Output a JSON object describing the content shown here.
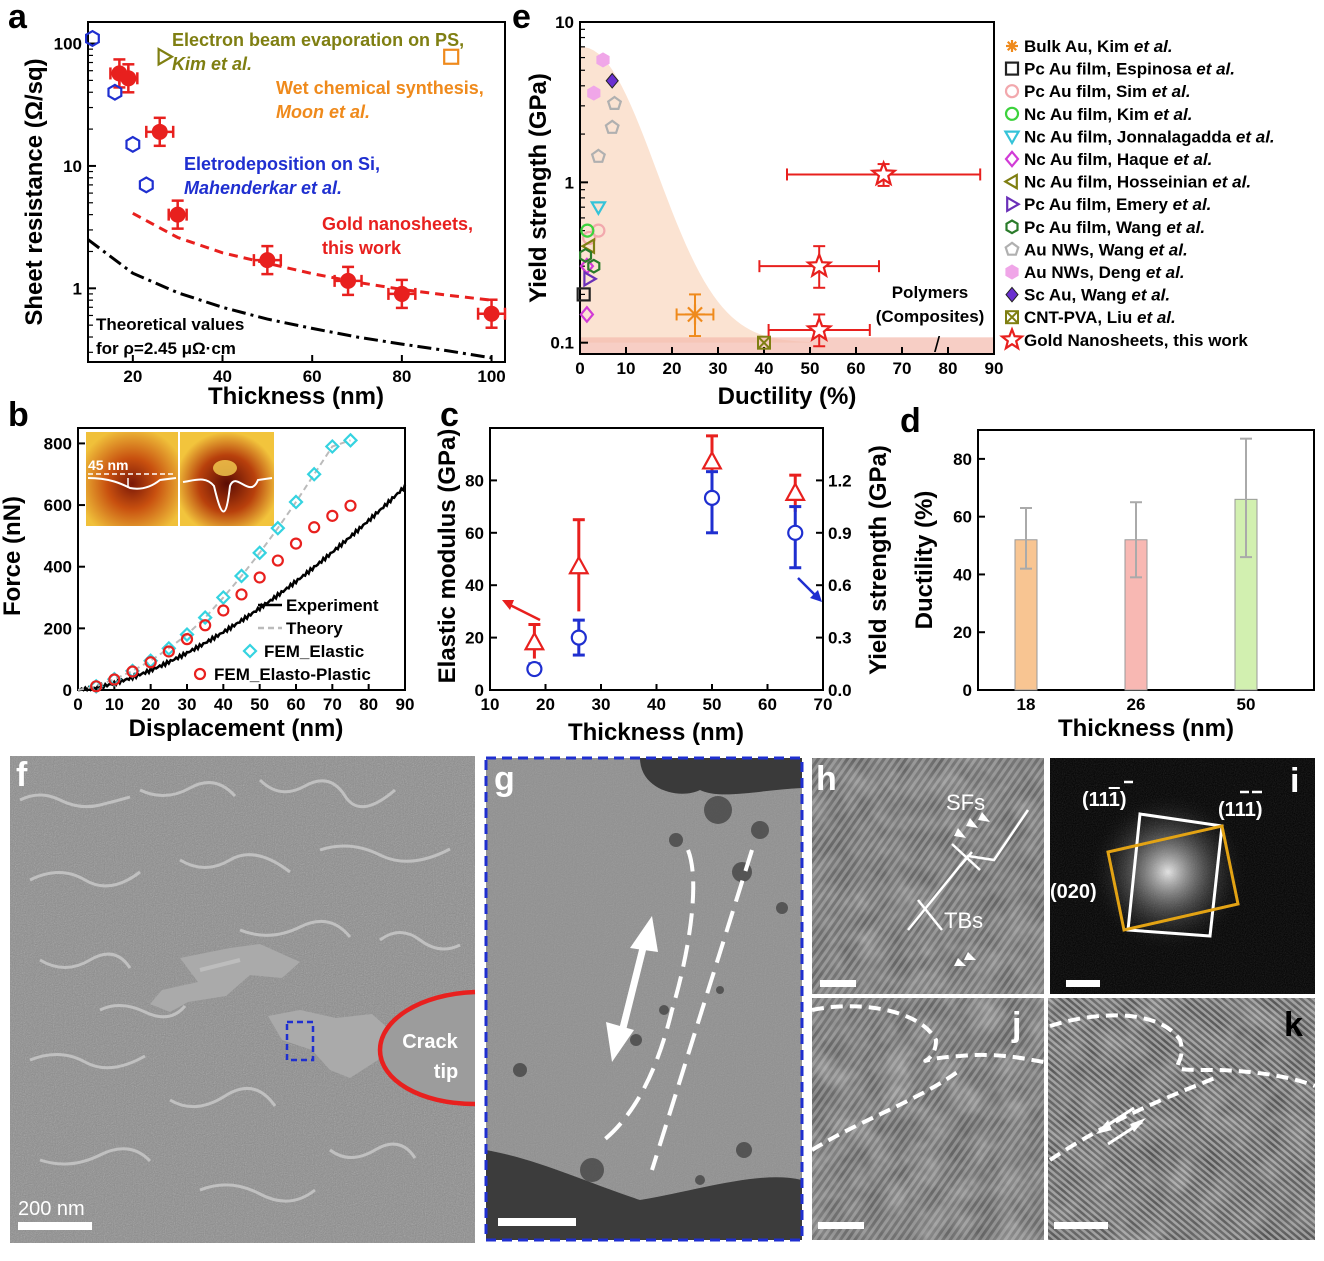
{
  "colors": {
    "red": "#e8201e",
    "blue": "#1f2fd0",
    "olive": "#7f7f12",
    "orange": "#ef8a1c",
    "cyan": "#35d3e0",
    "purple": "#6a2fb8",
    "shade": "#fbe3d2"
  },
  "chart_data": [
    {
      "panel": "a",
      "type": "scatter",
      "xlabel": "Thickness (nm)",
      "ylabel": "Sheet resistance (Ω/sq)",
      "xlim": [
        10,
        103
      ],
      "ylim": [
        0.25,
        150
      ],
      "yscale": "log",
      "xticks": [
        20,
        40,
        60,
        80,
        100
      ],
      "yticks": [
        {
          "v": 1,
          "t": "1"
        },
        {
          "v": 10,
          "t": "10"
        },
        {
          "v": 100,
          "t": "100"
        }
      ],
      "series": [
        {
          "name": "Gold nanosheets, this work",
          "marker": "circle",
          "color": "#e8201e",
          "x": [
            17,
            19,
            26,
            30,
            50,
            68,
            80,
            100
          ],
          "y": [
            57,
            52,
            19,
            4,
            1.7,
            1.15,
            0.9,
            0.62
          ],
          "xerr": [
            2,
            2,
            3,
            2,
            3,
            3,
            3,
            3
          ]
        },
        {
          "name": "Eletrodeposition on Si, Mahenderkar et al.",
          "marker": "hexagon",
          "color": "#1f2fd0",
          "x": [
            11,
            16,
            20,
            23
          ],
          "y": [
            110,
            40,
            15,
            7
          ]
        },
        {
          "name": "Electron beam evaporation on PS, Kim et al.",
          "marker": "triangle-right",
          "color": "#7f7f12",
          "x": [
            27
          ],
          "y": [
            78
          ]
        },
        {
          "name": "Wet chemical synthesis, Moon et al.",
          "marker": "square",
          "color": "#ef8a1c",
          "x": [
            91
          ],
          "y": [
            78
          ]
        }
      ],
      "fit": {
        "x": [
          20,
          30,
          40,
          50,
          60,
          70,
          80,
          90,
          100
        ],
        "y": [
          4.1,
          2.6,
          1.95,
          1.6,
          1.32,
          1.12,
          0.98,
          0.88,
          0.8
        ]
      },
      "theory": {
        "x": [
          10,
          20,
          30,
          40,
          50,
          60,
          70,
          80,
          90,
          100
        ],
        "y": [
          2.5,
          1.33,
          0.92,
          0.7,
          0.56,
          0.47,
          0.4,
          0.35,
          0.31,
          0.27
        ]
      },
      "annotations": [
        {
          "text": "Electron beam evaporation on PS,",
          "color": "#7f7f12"
        },
        {
          "text": "Kim et al.",
          "color": "#7f7f12"
        },
        {
          "text": "Wet chemical synthesis,",
          "color": "#ef8a1c"
        },
        {
          "text": "Moon et al.",
          "color": "#ef8a1c"
        },
        {
          "text": "Eletrodeposition on Si,",
          "color": "#1f2fd0"
        },
        {
          "text": "Mahenderkar et al.",
          "color": "#1f2fd0"
        },
        {
          "text": "Gold nanosheets,",
          "color": "#e8201e"
        },
        {
          "text": "this work",
          "color": "#e8201e"
        },
        {
          "text": "Theoretical values",
          "color": "#000000"
        },
        {
          "text": "for ρ=2.45 μΩ·cm",
          "color": "#000000"
        }
      ]
    },
    {
      "panel": "e",
      "type": "scatter",
      "xlabel": "Ductility (%)",
      "ylabel": "Yield strength (GPa)",
      "xlim": [
        0,
        90
      ],
      "ylim": [
        0.085,
        10
      ],
      "yscale": "log",
      "xticks": [
        0,
        10,
        20,
        30,
        40,
        50,
        60,
        70,
        80,
        90
      ],
      "yticks": [
        {
          "v": 0.1,
          "t": "0.1"
        },
        {
          "v": 1,
          "t": "1"
        },
        {
          "v": 10,
          "t": "10"
        }
      ],
      "polymer_label": [
        "Polymers",
        "(Composites)"
      ],
      "polymer_mark": "/",
      "points": [
        {
          "s": 0,
          "x": 25,
          "y": 0.15,
          "xerr": 4,
          "ylo": 0.11,
          "yhi": 0.2
        },
        {
          "s": 1,
          "x": 0.8,
          "y": 0.2
        },
        {
          "s": 2,
          "x": 2,
          "y": 0.45
        },
        {
          "s": 2,
          "x": 4,
          "y": 0.5
        },
        {
          "s": 3,
          "x": 1.6,
          "y": 0.5
        },
        {
          "s": 4,
          "x": 4,
          "y": 0.7
        },
        {
          "s": 5,
          "x": 1.5,
          "y": 0.15
        },
        {
          "s": 5,
          "x": 1.5,
          "y": 0.3
        },
        {
          "s": 6,
          "x": 2,
          "y": 0.4
        },
        {
          "s": 7,
          "x": 2,
          "y": 0.25
        },
        {
          "s": 8,
          "x": 1.2,
          "y": 0.35
        },
        {
          "s": 8,
          "x": 3,
          "y": 0.3
        },
        {
          "s": 9,
          "x": 4,
          "y": 1.45
        },
        {
          "s": 9,
          "x": 7,
          "y": 2.2
        },
        {
          "s": 9,
          "x": 7.5,
          "y": 3.1
        },
        {
          "s": 10,
          "x": 5,
          "y": 5.8
        },
        {
          "s": 10,
          "x": 3,
          "y": 3.6
        },
        {
          "s": 11,
          "x": 7,
          "y": 4.3
        },
        {
          "s": 12,
          "x": 40,
          "y": 0.1
        },
        {
          "s": 13,
          "x": 66,
          "y": 1.12,
          "xerr": 21,
          "ylo": 0.95,
          "yhi": 1.3
        },
        {
          "s": 13,
          "x": 52,
          "y": 0.3,
          "xerr": 13,
          "ylo": 0.22,
          "yhi": 0.4
        },
        {
          "s": 13,
          "x": 52,
          "y": 0.12,
          "xerr": 11,
          "ylo": 0.095,
          "yhi": 0.15
        }
      ],
      "legend": [
        {
          "name": "Bulk Au, Kim ",
          "et": "et al.",
          "tail": "",
          "marker": "asterisk",
          "color": "#ef8a1c"
        },
        {
          "name": "Pc Au film, Espinosa ",
          "et": "et al.",
          "tail": "",
          "marker": "square",
          "color": "#222222"
        },
        {
          "name": "Pc Au film, Sim ",
          "et": "et al.",
          "tail": "",
          "marker": "circle",
          "color": "#f2a8ad"
        },
        {
          "name": "Nc Au film, Kim ",
          "et": "et al.",
          "tail": "",
          "marker": "circle",
          "color": "#3cd23c"
        },
        {
          "name": "Nc Au film, Jonnalagadda ",
          "et": "et al.",
          "tail": "",
          "marker": "triangle-down",
          "color": "#35c3d8"
        },
        {
          "name": "Nc Au film, Haque ",
          "et": "et al.",
          "tail": "",
          "marker": "diamond",
          "color": "#d13bd6"
        },
        {
          "name": "Nc Au film, Hosseinian ",
          "et": "et al.",
          "tail": "",
          "marker": "triangle-left",
          "color": "#7f7f12"
        },
        {
          "name": "Pc Au film, Emery ",
          "et": "et al.",
          "tail": "",
          "marker": "triangle-right",
          "color": "#6a2fb8"
        },
        {
          "name": "Pc Au film, Wang ",
          "et": "et al.",
          "tail": "",
          "marker": "hexagon",
          "color": "#2a7b2a"
        },
        {
          "name": "Au NWs, Wang ",
          "et": "et al.",
          "tail": "",
          "marker": "pentagon",
          "color": "#b0b0b0"
        },
        {
          "name": "Au NWs, Deng ",
          "et": "et al.",
          "tail": "",
          "marker": "hexagon-fill",
          "color": "#f0a6e8"
        },
        {
          "name": "Sc Au, Wang ",
          "et": "et al.",
          "tail": "",
          "marker": "diamond-fill",
          "color": "#6a2fd0"
        },
        {
          "name": "CNT-PVA, Liu ",
          "et": "et al.",
          "tail": "",
          "marker": "xbox",
          "color": "#7f7f12"
        },
        {
          "name": "Gold Nanosheets, this work",
          "et": "",
          "tail": "",
          "marker": "star",
          "color": "#e8201e"
        }
      ]
    },
    {
      "panel": "b",
      "type": "line",
      "xlabel": "Displacement (nm)",
      "ylabel": "Force (nN)",
      "xlim": [
        0,
        90
      ],
      "ylim": [
        0,
        850
      ],
      "xticks": [
        0,
        10,
        20,
        30,
        40,
        50,
        60,
        70,
        80,
        90
      ],
      "yticks": [
        0,
        200,
        400,
        600,
        800
      ],
      "inset_label": "45 nm",
      "experiment": {
        "x": [
          0,
          10,
          20,
          30,
          40,
          50,
          60,
          70,
          80,
          90
        ],
        "y": [
          0,
          32,
          85,
          150,
          232,
          325,
          415,
          505,
          585,
          660
        ]
      },
      "elastic": {
        "x": [
          0,
          5,
          10,
          15,
          20,
          25,
          30,
          35,
          40,
          45,
          50,
          55,
          60,
          65,
          70,
          75
        ],
        "y": [
          0,
          12,
          35,
          62,
          95,
          135,
          180,
          235,
          300,
          370,
          445,
          525,
          610,
          700,
          790,
          810
        ]
      },
      "plastic": {
        "x": [
          0,
          5,
          10,
          15,
          20,
          25,
          30,
          35,
          40,
          45,
          50,
          55,
          60,
          65,
          70,
          75
        ],
        "y": [
          0,
          12,
          34,
          60,
          90,
          125,
          165,
          210,
          258,
          310,
          365,
          420,
          475,
          528,
          565,
          598
        ]
      },
      "legend": [
        "Experiment",
        "Theory",
        "FEM_Elastic",
        "FEM_Elasto-Plastic"
      ]
    },
    {
      "panel": "c",
      "type": "scatter",
      "xlabel": "Thickness (nm)",
      "ylabel": "Elastic modulus (GPa)",
      "ylabel2": "Yield strength (GPa)",
      "xlim": [
        10,
        70
      ],
      "ylim": [
        0,
        100
      ],
      "ylim2": [
        0,
        1.5
      ],
      "xticks": [
        10,
        20,
        30,
        40,
        50,
        60,
        70
      ],
      "yticks": [
        0,
        20,
        40,
        60,
        80
      ],
      "yticks2": [
        "0.0",
        "0.3",
        "0.6",
        "0.9",
        "1.2"
      ],
      "modulus": {
        "x": [
          18,
          26,
          50,
          65
        ],
        "y": [
          18,
          47,
          87,
          75
        ],
        "lo": [
          12,
          30,
          78,
          68
        ],
        "hi": [
          25,
          65,
          97,
          82
        ]
      },
      "strength": {
        "x": [
          18,
          26,
          50,
          65
        ],
        "y": [
          0.12,
          0.3,
          1.1,
          0.9
        ],
        "lo": [
          0.1,
          0.2,
          0.9,
          0.7
        ],
        "hi": [
          0.15,
          0.4,
          1.25,
          1.05
        ]
      }
    },
    {
      "panel": "d",
      "type": "bar",
      "xlabel": "Thickness (nm)",
      "ylabel": "Ductility (%)",
      "categories": [
        "18",
        "26",
        "50"
      ],
      "values": [
        52,
        52,
        66
      ],
      "lo": [
        42,
        39,
        46
      ],
      "hi": [
        63,
        65,
        87
      ],
      "ylim": [
        0,
        90
      ],
      "yticks": [
        0,
        20,
        40,
        60,
        80
      ],
      "colors": [
        "#f8c592",
        "#f8b8b3",
        "#d2f0b0"
      ]
    }
  ],
  "panels": {
    "a": "a",
    "b": "b",
    "c": "c",
    "d": "d",
    "e": "e",
    "f": "f",
    "g": "g",
    "h": "h",
    "i": "i",
    "j": "j",
    "k": "k"
  },
  "images": {
    "f_scale": "200 nm",
    "crack1": "Crack",
    "crack2": "tip",
    "h_sfs": "SFs",
    "h_tbs": "TBs",
    "i_m1": "(11",
    "i_m1b": "1",
    "i_m1c": ")",
    "i_m2": "(1",
    "i_m2b": "11",
    "i_m2c": ")",
    "i_m3": "(020)"
  }
}
